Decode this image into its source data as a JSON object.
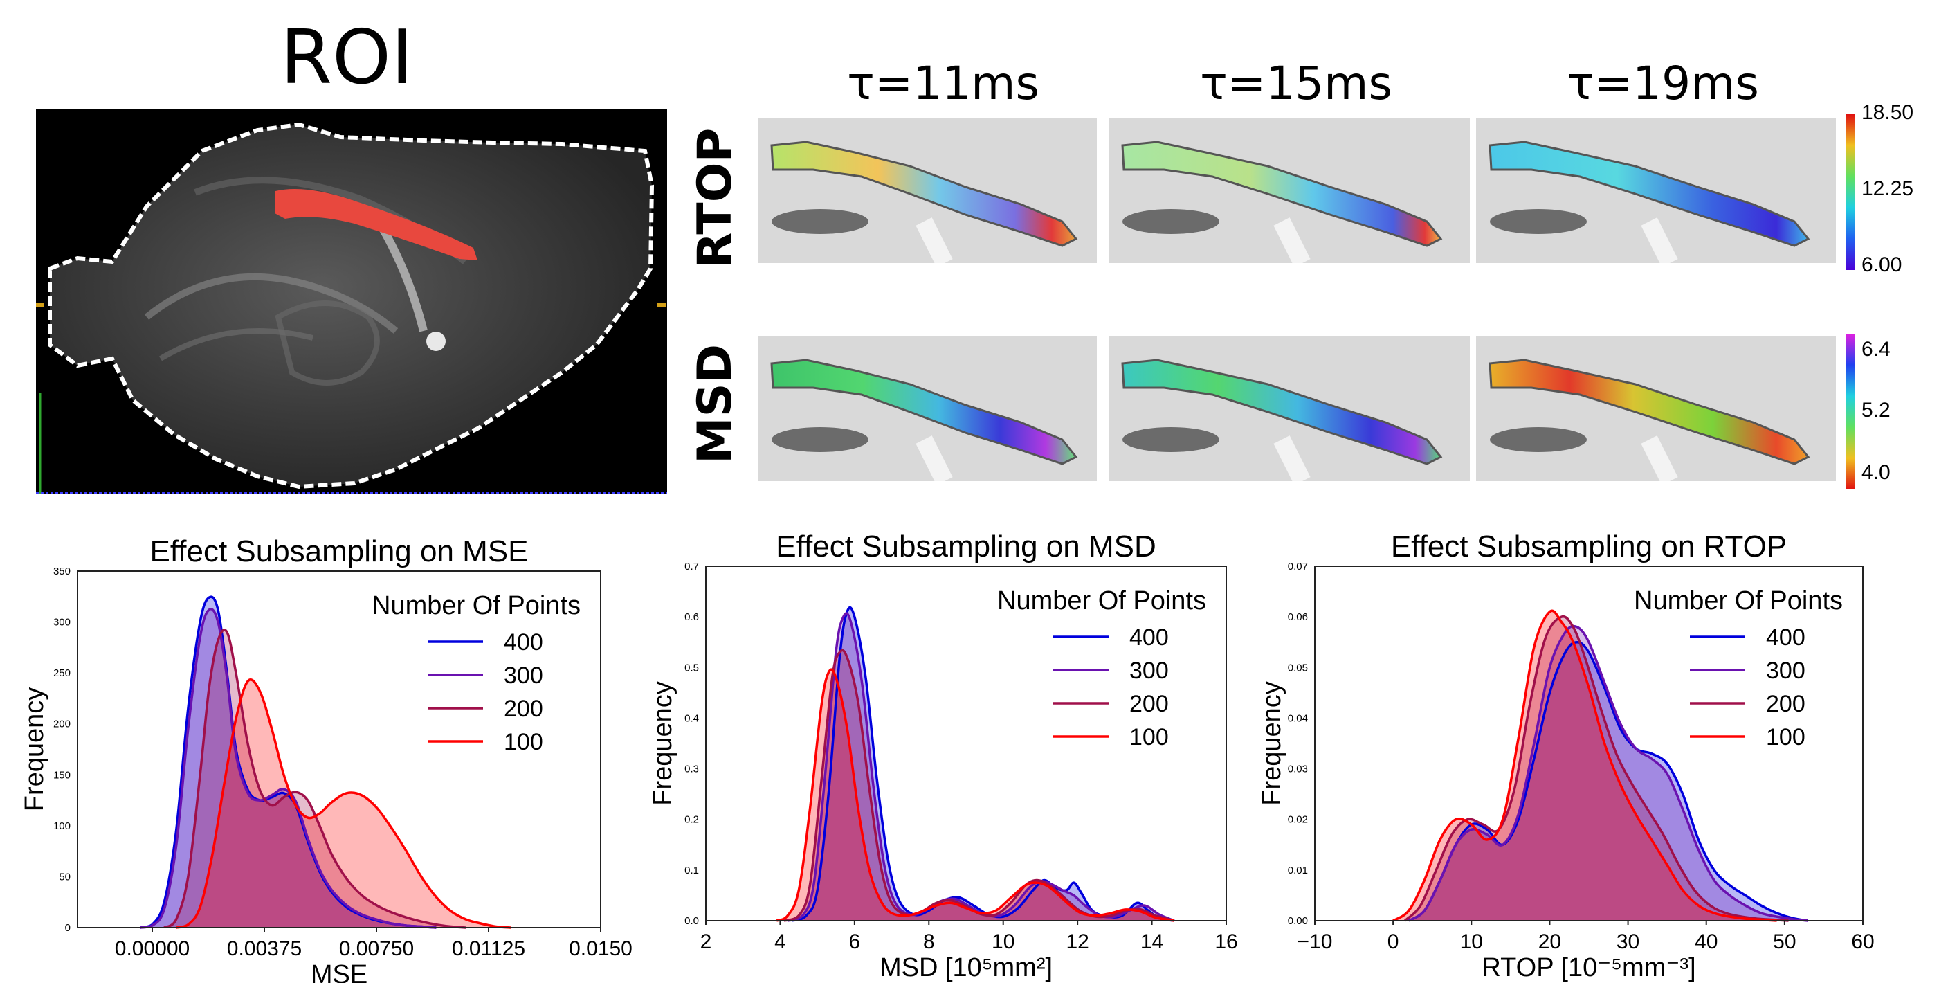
{
  "images": {
    "roi_title": "ROI",
    "columns": [
      "τ=11ms",
      "τ=15ms",
      "τ=19ms"
    ],
    "rows": [
      "RTOP",
      "MSD"
    ],
    "colorbars": [
      {
        "name": "RTOP",
        "ticks": [
          "18.50",
          "12.25",
          "6.00"
        ]
      },
      {
        "name": "MSD",
        "ticks": [
          "6.4",
          "5.2",
          "4.0"
        ]
      }
    ]
  },
  "chart_data": [
    {
      "type": "area",
      "title": "Effect Subsampling on MSE",
      "xlabel": "MSE",
      "ylabel": "Frequency",
      "xlim": [
        -0.0025,
        0.015
      ],
      "ylim": [
        0,
        350
      ],
      "xticks": [
        0.0,
        0.00375,
        0.0075,
        0.01125,
        0.015
      ],
      "xtick_labels": [
        "0.00000",
        "0.00375",
        "0.00750",
        "0.01125",
        "0.0150"
      ],
      "yticks": [
        0,
        50,
        100,
        150,
        200,
        250,
        300,
        350
      ],
      "ytick_labels": [
        "0",
        "50",
        "100",
        "150",
        "200",
        "250",
        "300",
        "350"
      ],
      "grid": false,
      "legend": {
        "title": "Number Of Points",
        "placement": "top-right"
      },
      "series": [
        {
          "name": "400",
          "color": "#0000dd",
          "x": [
            -0.0004,
            0.0,
            0.0004,
            0.0008,
            0.0012,
            0.0016,
            0.0019,
            0.0022,
            0.0025,
            0.0028,
            0.0032,
            0.0036,
            0.004,
            0.0044,
            0.0048,
            0.0052,
            0.0056,
            0.006,
            0.0065,
            0.007,
            0.0075,
            0.008,
            0.0085,
            0.009,
            0.0095
          ],
          "y": [
            0,
            3,
            25,
            95,
            215,
            300,
            324,
            312,
            250,
            175,
            135,
            125,
            128,
            132,
            120,
            85,
            55,
            35,
            20,
            12,
            7,
            4,
            2,
            1,
            0
          ]
        },
        {
          "name": "300",
          "color": "#6a12b0",
          "x": [
            -0.0004,
            0.0,
            0.0004,
            0.0008,
            0.0012,
            0.0016,
            0.0019,
            0.0022,
            0.0025,
            0.0028,
            0.0032,
            0.0036,
            0.004,
            0.0044,
            0.0048,
            0.0052,
            0.0056,
            0.006,
            0.0065,
            0.007,
            0.0075,
            0.008,
            0.0085,
            0.009,
            0.0095
          ],
          "y": [
            0,
            2,
            18,
            80,
            195,
            285,
            312,
            300,
            245,
            170,
            132,
            125,
            130,
            136,
            124,
            88,
            57,
            37,
            22,
            13,
            8,
            4,
            2,
            1,
            0
          ]
        },
        {
          "name": "200",
          "color": "#a0104a",
          "x": [
            0.0004,
            0.0008,
            0.0012,
            0.0016,
            0.0019,
            0.0022,
            0.0025,
            0.0028,
            0.0032,
            0.0036,
            0.004,
            0.0044,
            0.0048,
            0.0052,
            0.0056,
            0.006,
            0.0065,
            0.007,
            0.0075,
            0.008,
            0.0085,
            0.009,
            0.0095,
            0.01,
            0.0105
          ],
          "y": [
            0,
            8,
            50,
            150,
            235,
            282,
            290,
            250,
            180,
            135,
            120,
            128,
            133,
            125,
            100,
            72,
            48,
            32,
            22,
            15,
            10,
            6,
            3,
            1,
            0
          ]
        },
        {
          "name": "100",
          "color": "#ff0000",
          "x": [
            0.0008,
            0.0012,
            0.0016,
            0.002,
            0.0024,
            0.0028,
            0.0032,
            0.0036,
            0.004,
            0.0044,
            0.0048,
            0.0052,
            0.0056,
            0.006,
            0.0065,
            0.007,
            0.0075,
            0.008,
            0.0085,
            0.009,
            0.0095,
            0.01,
            0.0105,
            0.011,
            0.0115,
            0.012
          ],
          "y": [
            0,
            3,
            20,
            70,
            140,
            205,
            242,
            232,
            195,
            150,
            120,
            108,
            112,
            123,
            132,
            130,
            118,
            98,
            75,
            50,
            30,
            16,
            8,
            4,
            1,
            0
          ]
        }
      ]
    },
    {
      "type": "area",
      "title": "Effect Subsampling on MSD",
      "xlabel": "MSD [10⁵mm²]",
      "ylabel": "Frequency",
      "xlim": [
        2,
        16
      ],
      "ylim": [
        0,
        0.7
      ],
      "xticks": [
        2,
        4,
        6,
        8,
        10,
        12,
        14,
        16
      ],
      "xtick_labels": [
        "2",
        "4",
        "6",
        "8",
        "10",
        "12",
        "14",
        "16"
      ],
      "yticks": [
        0,
        0.1,
        0.2,
        0.3,
        0.4,
        0.5,
        0.6,
        0.7
      ],
      "ytick_labels": [
        "0.0",
        "0.1",
        "0.2",
        "0.3",
        "0.4",
        "0.5",
        "0.6",
        "0.7"
      ],
      "grid": false,
      "legend": {
        "title": "Number Of Points",
        "placement": "top-right"
      },
      "series": [
        {
          "name": "400",
          "color": "#0000dd",
          "x": [
            4.3,
            4.7,
            5.0,
            5.3,
            5.6,
            5.8,
            6.0,
            6.3,
            6.6,
            6.9,
            7.2,
            7.6,
            8.0,
            8.4,
            8.8,
            9.2,
            9.6,
            10.0,
            10.4,
            10.8,
            11.1,
            11.4,
            11.7,
            11.9,
            12.1,
            12.4,
            12.8,
            13.2,
            13.6,
            13.9,
            14.2,
            14.6
          ],
          "y": [
            0,
            0.01,
            0.06,
            0.25,
            0.52,
            0.61,
            0.6,
            0.48,
            0.28,
            0.12,
            0.04,
            0.012,
            0.02,
            0.04,
            0.046,
            0.03,
            0.012,
            0.008,
            0.025,
            0.06,
            0.08,
            0.065,
            0.06,
            0.075,
            0.055,
            0.02,
            0.008,
            0.01,
            0.035,
            0.02,
            0.005,
            0
          ]
        },
        {
          "name": "300",
          "color": "#6a12b0",
          "x": [
            4.2,
            4.6,
            4.9,
            5.2,
            5.5,
            5.7,
            5.9,
            6.2,
            6.5,
            6.8,
            7.1,
            7.5,
            7.9,
            8.3,
            8.7,
            9.1,
            9.5,
            9.9,
            10.3,
            10.7,
            11.0,
            11.3,
            11.6,
            11.9,
            12.2,
            12.6,
            13.0,
            13.4,
            13.8,
            14.2,
            14.6
          ],
          "y": [
            0,
            0.01,
            0.07,
            0.28,
            0.53,
            0.6,
            0.59,
            0.47,
            0.27,
            0.11,
            0.035,
            0.012,
            0.02,
            0.038,
            0.043,
            0.028,
            0.012,
            0.01,
            0.03,
            0.065,
            0.078,
            0.072,
            0.06,
            0.05,
            0.03,
            0.01,
            0.008,
            0.02,
            0.03,
            0.012,
            0
          ]
        },
        {
          "name": "200",
          "color": "#a0104a",
          "x": [
            4.1,
            4.5,
            4.8,
            5.1,
            5.4,
            5.6,
            5.8,
            6.1,
            6.4,
            6.7,
            7.0,
            7.4,
            7.8,
            8.2,
            8.6,
            9.0,
            9.4,
            9.8,
            10.2,
            10.6,
            10.9,
            11.2,
            11.5,
            11.8,
            12.1,
            12.5,
            12.9,
            13.3,
            13.7,
            14.1,
            14.6
          ],
          "y": [
            0,
            0.01,
            0.07,
            0.27,
            0.48,
            0.53,
            0.52,
            0.43,
            0.26,
            0.11,
            0.035,
            0.012,
            0.018,
            0.035,
            0.04,
            0.028,
            0.013,
            0.012,
            0.035,
            0.07,
            0.08,
            0.072,
            0.055,
            0.035,
            0.018,
            0.008,
            0.01,
            0.02,
            0.022,
            0.01,
            0
          ]
        },
        {
          "name": "100",
          "color": "#ff0000",
          "x": [
            3.9,
            4.2,
            4.5,
            4.8,
            5.1,
            5.3,
            5.5,
            5.8,
            6.1,
            6.4,
            6.7,
            7.0,
            7.4,
            7.8,
            8.2,
            8.6,
            9.0,
            9.4,
            9.8,
            10.2,
            10.6,
            10.9,
            11.2,
            11.5,
            11.8,
            12.1,
            12.5,
            12.9,
            13.3,
            13.7,
            14.1,
            14.6
          ],
          "y": [
            0,
            0.01,
            0.06,
            0.22,
            0.42,
            0.49,
            0.48,
            0.38,
            0.22,
            0.1,
            0.04,
            0.015,
            0.01,
            0.018,
            0.03,
            0.035,
            0.025,
            0.015,
            0.02,
            0.045,
            0.07,
            0.075,
            0.068,
            0.05,
            0.03,
            0.015,
            0.01,
            0.015,
            0.022,
            0.018,
            0.006,
            0
          ]
        }
      ]
    },
    {
      "type": "area",
      "title": "Effect Subsampling on RTOP",
      "xlabel": "RTOP [10⁻⁵mm⁻³]",
      "ylabel": "Frequency",
      "xlim": [
        -10,
        60
      ],
      "ylim": [
        0,
        0.07
      ],
      "xticks": [
        -10,
        0,
        10,
        20,
        30,
        40,
        50,
        60
      ],
      "xtick_labels": [
        "−10",
        "0",
        "10",
        "20",
        "30",
        "40",
        "50",
        "60"
      ],
      "yticks": [
        0,
        0.01,
        0.02,
        0.03,
        0.04,
        0.05,
        0.06,
        0.07
      ],
      "ytick_labels": [
        "0.00",
        "0.01",
        "0.02",
        "0.03",
        "0.04",
        "0.05",
        "0.06",
        "0.07"
      ],
      "grid": false,
      "legend": {
        "title": "Number Of Points",
        "placement": "top-right"
      },
      "series": [
        {
          "name": "400",
          "color": "#0000dd",
          "x": [
            2,
            4,
            6,
            8,
            10,
            12,
            14,
            16,
            18,
            20,
            22,
            23.5,
            25,
            27,
            29,
            31,
            33,
            35,
            37,
            39,
            41,
            43,
            45,
            47,
            49,
            51,
            53
          ],
          "y": [
            0,
            0.002,
            0.008,
            0.015,
            0.019,
            0.018,
            0.015,
            0.02,
            0.032,
            0.045,
            0.053,
            0.055,
            0.053,
            0.046,
            0.038,
            0.034,
            0.033,
            0.031,
            0.025,
            0.016,
            0.01,
            0.007,
            0.005,
            0.003,
            0.0015,
            0.0005,
            0
          ]
        },
        {
          "name": "300",
          "color": "#6a12b0",
          "x": [
            2,
            4,
            6,
            8,
            10,
            12,
            14,
            16,
            18,
            20,
            22,
            23.5,
            25,
            27,
            29,
            31,
            33,
            35,
            37,
            39,
            41,
            43,
            45,
            47,
            49,
            51,
            53
          ],
          "y": [
            0,
            0.002,
            0.008,
            0.015,
            0.018,
            0.017,
            0.015,
            0.021,
            0.035,
            0.05,
            0.057,
            0.058,
            0.055,
            0.047,
            0.039,
            0.034,
            0.032,
            0.029,
            0.022,
            0.014,
            0.008,
            0.005,
            0.003,
            0.0015,
            0.0008,
            0.0003,
            0
          ]
        },
        {
          "name": "200",
          "color": "#a0104a",
          "x": [
            1.5,
            3.5,
            5.5,
            7.5,
            9.5,
            11.5,
            13.5,
            15.5,
            17.5,
            19.5,
            21.5,
            23,
            24.5,
            26.5,
            28.5,
            30.5,
            32.5,
            34.5,
            36.5,
            38.5,
            40.5,
            42.5,
            44.5,
            46.5,
            48.5,
            50.5
          ],
          "y": [
            0,
            0.003,
            0.01,
            0.017,
            0.02,
            0.019,
            0.018,
            0.026,
            0.043,
            0.056,
            0.06,
            0.058,
            0.052,
            0.042,
            0.033,
            0.027,
            0.022,
            0.017,
            0.011,
            0.006,
            0.003,
            0.0015,
            0.0008,
            0.0004,
            0.0002,
            0
          ]
        },
        {
          "name": "100",
          "color": "#ff0000",
          "x": [
            0,
            2,
            4,
            6,
            8,
            10,
            12,
            14,
            16,
            18,
            20,
            21.5,
            23,
            25,
            27,
            29,
            31,
            33,
            35,
            37,
            39,
            41,
            43,
            45,
            47,
            49
          ],
          "y": [
            0,
            0.002,
            0.008,
            0.016,
            0.02,
            0.019,
            0.016,
            0.02,
            0.036,
            0.054,
            0.061,
            0.059,
            0.055,
            0.046,
            0.035,
            0.027,
            0.021,
            0.016,
            0.011,
            0.006,
            0.003,
            0.0015,
            0.0008,
            0.0004,
            0.0002,
            0
          ]
        }
      ]
    }
  ]
}
